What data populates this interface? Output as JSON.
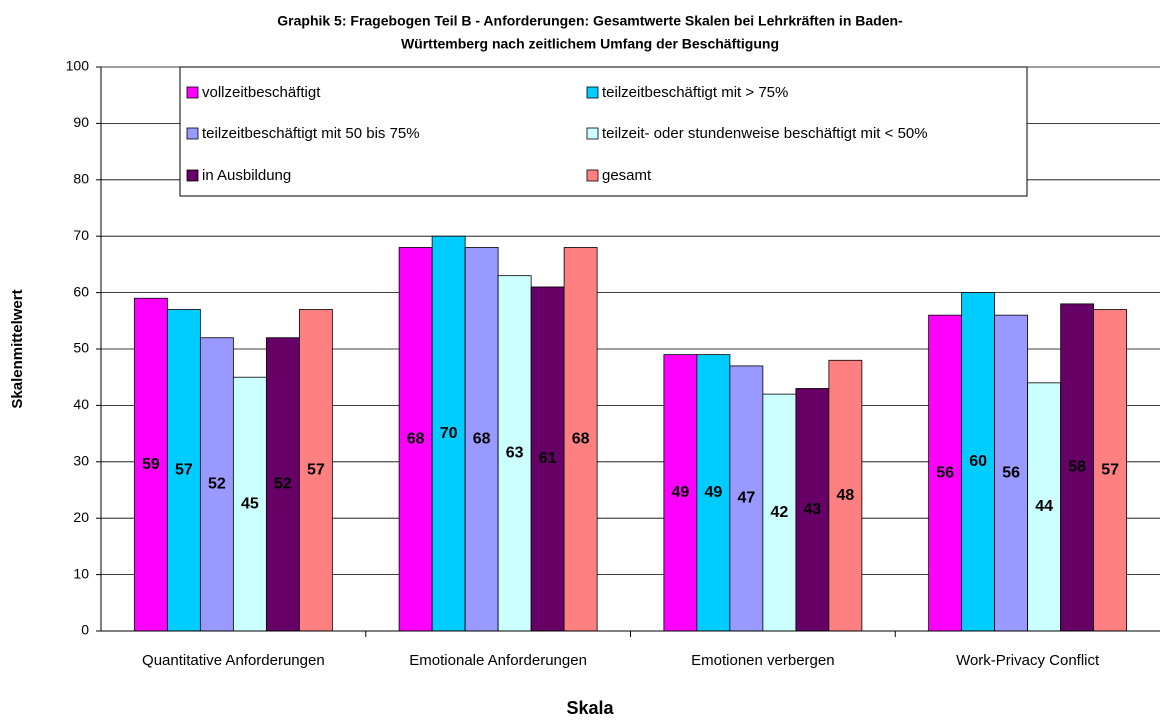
{
  "chart_data": {
    "type": "bar",
    "title": [
      "Graphik 5: Fragebogen Teil B - Anforderungen: Gesamtwerte Skalen bei Lehrkräften in Baden-",
      "Württemberg nach zeitlichem Umfang der Beschäftigung"
    ],
    "x_label": "Skala",
    "y_label": "Skalenmittelwert",
    "categories": [
      "Quantitative Anforderungen",
      "Emotionale Anforderungen",
      "Emotionen verbergen",
      "Work-Privacy Conflict"
    ],
    "series": [
      {
        "name": "vollzeitbeschäftigt",
        "color": "#FF00FF",
        "values": [
          59,
          68,
          49,
          56
        ]
      },
      {
        "name": "teilzeitbeschäftigt mit > 75%",
        "color": "#00CCFF",
        "values": [
          57,
          70,
          49,
          60
        ]
      },
      {
        "name": "teilzeitbeschäftigt mit  50 bis 75%",
        "color": "#9999FF",
        "values": [
          52,
          68,
          47,
          56
        ]
      },
      {
        "name": "teilzeit- oder stundenweise beschäftigt mit < 50%",
        "color": "#CCFFFF",
        "values": [
          45,
          63,
          42,
          44
        ]
      },
      {
        "name": "in Ausbildung",
        "color": "#660066",
        "values": [
          52,
          61,
          43,
          58
        ]
      },
      {
        "name": "gesamt",
        "color": "#FF8080",
        "values": [
          57,
          68,
          48,
          57
        ]
      }
    ],
    "ylim": [
      0,
      100
    ],
    "yticks": [
      0,
      10,
      20,
      30,
      40,
      50,
      60,
      70,
      80,
      90,
      100
    ],
    "grid": true,
    "legend": "top"
  }
}
